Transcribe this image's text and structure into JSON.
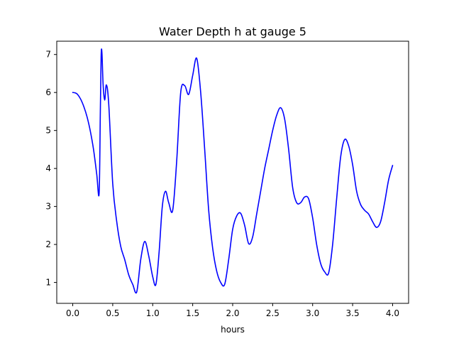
{
  "chart_data": {
    "type": "line",
    "title": "Water Depth h at gauge 5",
    "xlabel": "hours",
    "ylabel": "",
    "xlim": [
      -0.2,
      4.2
    ],
    "ylim": [
      0.45,
      7.35
    ],
    "x_ticks": [
      0.0,
      0.5,
      1.0,
      1.5,
      2.0,
      2.5,
      3.0,
      3.5,
      4.0
    ],
    "x_tick_labels": [
      "0.0",
      "0.5",
      "1.0",
      "1.5",
      "2.0",
      "2.5",
      "3.0",
      "3.5",
      "4.0"
    ],
    "y_ticks": [
      1,
      2,
      3,
      4,
      5,
      6,
      7
    ],
    "y_tick_labels": [
      "1",
      "2",
      "3",
      "4",
      "5",
      "6",
      "7"
    ],
    "grid": false,
    "series": [
      {
        "color": "#0000ff",
        "x": [
          0.0,
          0.03,
          0.06,
          0.1,
          0.14,
          0.18,
          0.22,
          0.26,
          0.3,
          0.33,
          0.345,
          0.355,
          0.365,
          0.38,
          0.4,
          0.42,
          0.45,
          0.5,
          0.55,
          0.6,
          0.65,
          0.7,
          0.75,
          0.8,
          0.85,
          0.9,
          0.95,
          1.0,
          1.04,
          1.08,
          1.12,
          1.16,
          1.2,
          1.25,
          1.3,
          1.35,
          1.4,
          1.45,
          1.5,
          1.55,
          1.6,
          1.65,
          1.7,
          1.75,
          1.8,
          1.85,
          1.9,
          1.95,
          2.0,
          2.05,
          2.1,
          2.15,
          2.2,
          2.25,
          2.3,
          2.35,
          2.4,
          2.45,
          2.5,
          2.55,
          2.6,
          2.65,
          2.7,
          2.75,
          2.8,
          2.85,
          2.9,
          2.95,
          3.0,
          3.05,
          3.1,
          3.15,
          3.2,
          3.25,
          3.3,
          3.35,
          3.4,
          3.45,
          3.5,
          3.55,
          3.6,
          3.65,
          3.7,
          3.75,
          3.8,
          3.85,
          3.9,
          3.95,
          4.0
        ],
        "y": [
          6.0,
          5.99,
          5.95,
          5.82,
          5.62,
          5.35,
          4.98,
          4.5,
          3.85,
          3.35,
          5.5,
          6.95,
          7.05,
          6.2,
          5.8,
          6.2,
          5.7,
          3.6,
          2.6,
          1.95,
          1.6,
          1.2,
          0.95,
          0.75,
          1.6,
          2.08,
          1.7,
          1.15,
          0.95,
          1.8,
          3.0,
          3.4,
          3.1,
          2.9,
          4.2,
          6.0,
          6.18,
          5.95,
          6.45,
          6.9,
          6.0,
          4.5,
          2.9,
          1.9,
          1.3,
          1.0,
          0.95,
          1.6,
          2.4,
          2.75,
          2.82,
          2.5,
          2.02,
          2.2,
          2.8,
          3.4,
          4.0,
          4.5,
          5.0,
          5.4,
          5.6,
          5.3,
          4.5,
          3.5,
          3.1,
          3.1,
          3.25,
          3.2,
          2.7,
          2.0,
          1.5,
          1.28,
          1.25,
          2.0,
          3.2,
          4.3,
          4.76,
          4.6,
          4.1,
          3.4,
          3.05,
          2.9,
          2.8,
          2.6,
          2.45,
          2.6,
          3.1,
          3.7,
          4.08
        ]
      }
    ]
  }
}
